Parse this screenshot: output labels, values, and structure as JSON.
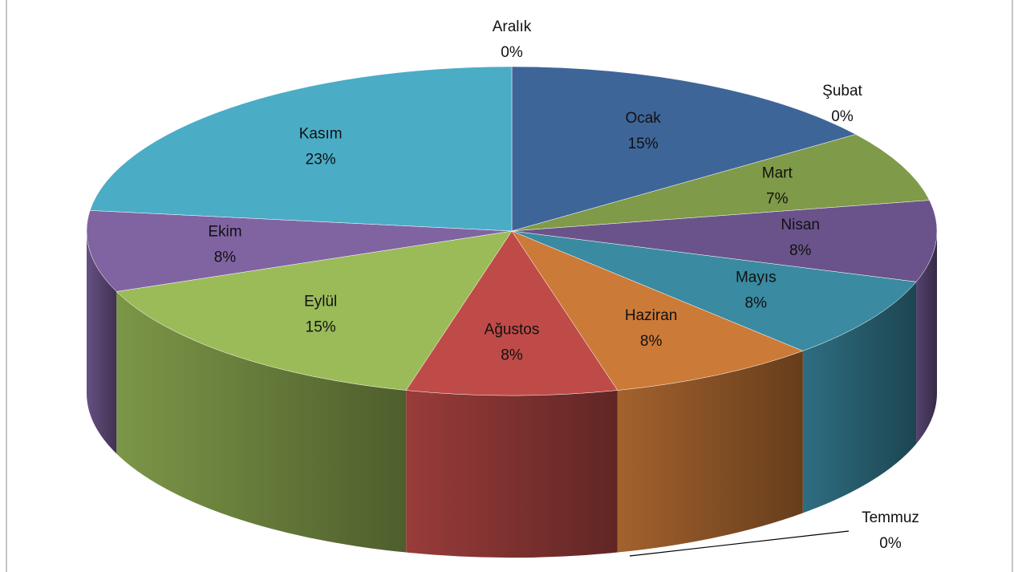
{
  "chart_data": {
    "type": "pie3d",
    "categories": [
      "Ocak",
      "Şubat",
      "Mart",
      "Nisan",
      "Mayıs",
      "Haziran",
      "Temmuz",
      "Ağustos",
      "Eylül",
      "Ekim",
      "Kasım",
      "Aralık"
    ],
    "values": [
      15,
      0,
      7,
      8,
      8,
      8,
      0,
      8,
      15,
      8,
      23,
      0
    ],
    "value_labels": [
      "15%",
      "0%",
      "7%",
      "8%",
      "8%",
      "8%",
      "0%",
      "8%",
      "15%",
      "8%",
      "23%",
      "0%"
    ],
    "colors": [
      "#3e6598",
      "#a5402d",
      "#7f9a48",
      "#6a538b",
      "#3a8aa1",
      "#cc7a38",
      "#5b8ac4",
      "#bf4b48",
      "#9bbb59",
      "#8064a2",
      "#4bacc6",
      "#f79646"
    ]
  }
}
